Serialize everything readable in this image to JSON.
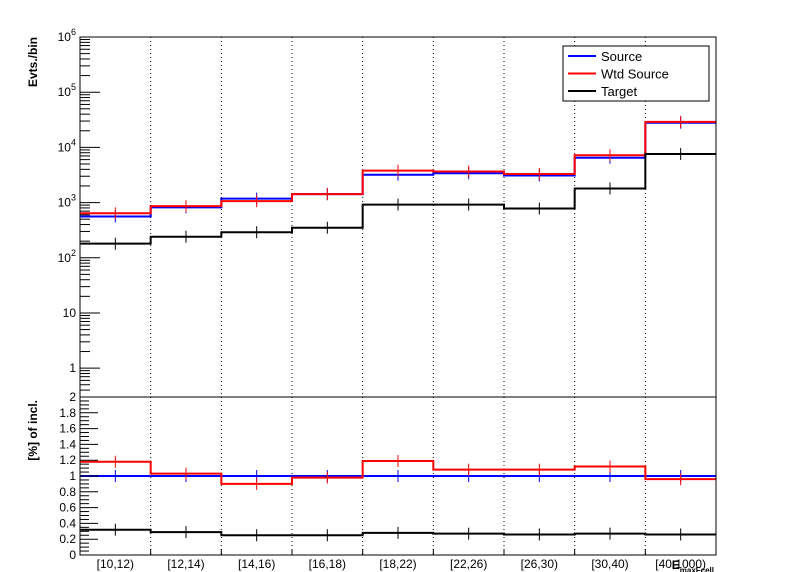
{
  "chart_data": [
    {
      "type": "line",
      "subtype": "step-histogram",
      "title": "",
      "ylabel": "Evts./bin",
      "yscale": "log",
      "ylim": [
        0.3,
        1000000
      ],
      "yticks": [
        {
          "value": 1,
          "label": "1"
        },
        {
          "value": 10,
          "label": "10"
        },
        {
          "value": 100,
          "base": "10",
          "exp": "2"
        },
        {
          "value": 1000,
          "base": "10",
          "exp": "3"
        },
        {
          "value": 10000,
          "base": "10",
          "exp": "4"
        },
        {
          "value": 100000,
          "base": "10",
          "exp": "5"
        },
        {
          "value": 1000000,
          "base": "10",
          "exp": "6"
        }
      ],
      "grid": "vertical dotted",
      "legend": {
        "position": "top-right",
        "entries": [
          "Source",
          "Wtd Source",
          "Target"
        ]
      },
      "series": [
        {
          "name": "Source",
          "color": "#0000ff",
          "values": [
            560,
            820,
            1180,
            1420,
            3200,
            3400,
            3100,
            6500,
            28000
          ]
        },
        {
          "name": "Wtd Source",
          "color": "#ff0000",
          "values": [
            640,
            860,
            1060,
            1420,
            3800,
            3650,
            3300,
            7200,
            29000
          ]
        },
        {
          "name": "Target",
          "color": "#000000",
          "values": [
            180,
            240,
            290,
            350,
            920,
            920,
            780,
            1800,
            7600
          ]
        }
      ]
    },
    {
      "type": "line",
      "subtype": "step-histogram",
      "ylabel": "[%] of incl.",
      "ylim": [
        0,
        2
      ],
      "yticks": [
        "0",
        "0.2",
        "0.4",
        "0.6",
        "0.8",
        "1",
        "1.2",
        "1.4",
        "1.6",
        "1.8",
        "2"
      ],
      "categories": [
        "[10,12)",
        "[12,14)",
        "[14,16)",
        "[16,18)",
        "[18,22)",
        "[22,26)",
        "[26,30)",
        "[30,40)",
        "[40,1000)"
      ],
      "xlabel": "E_{maxFcell}",
      "xlabel_visible": "E",
      "xlabel_sub": "maxFcell",
      "series": [
        {
          "name": "Source",
          "color": "#0000ff",
          "values": [
            1.0,
            1.0,
            1.0,
            1.0,
            1.0,
            1.0,
            1.0,
            1.0,
            1.0
          ]
        },
        {
          "name": "Wtd Source",
          "color": "#ff0000",
          "values": [
            1.18,
            1.03,
            0.9,
            0.98,
            1.19,
            1.08,
            1.08,
            1.12,
            0.96
          ]
        },
        {
          "name": "Target",
          "color": "#000000",
          "values": [
            0.32,
            0.29,
            0.25,
            0.25,
            0.28,
            0.27,
            0.26,
            0.27,
            0.26
          ]
        }
      ]
    }
  ]
}
